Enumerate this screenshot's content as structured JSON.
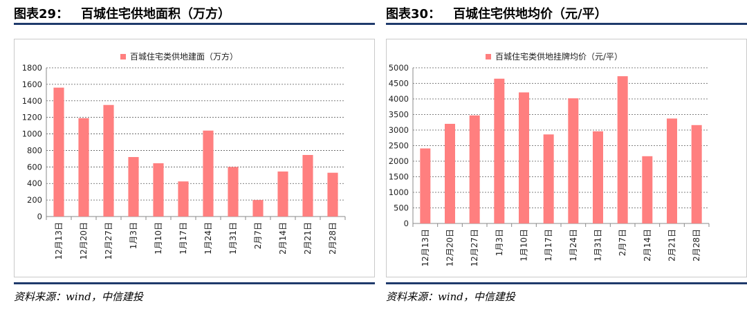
{
  "figures": [
    {
      "number": "图表29：",
      "title": "百城住宅供地面积（万方）",
      "source": "资料来源：wind，中信建投"
    },
    {
      "number": "图表30：",
      "title": "百城住宅供地均价（元/平）",
      "source": "资料来源：wind，中信建投"
    }
  ],
  "chart_data": [
    {
      "type": "bar",
      "categories": [
        "12月13日",
        "12月20日",
        "12月27日",
        "1月3日",
        "1月10日",
        "1月17日",
        "1月24日",
        "1月31日",
        "2月7日",
        "2月14日",
        "2月21日",
        "2月28日"
      ],
      "series": [
        {
          "name": "百城住宅类供地建面（万方）",
          "values": [
            1560,
            1190,
            1350,
            720,
            645,
            425,
            1040,
            600,
            200,
            545,
            745,
            530
          ]
        }
      ],
      "ylim": [
        0,
        1800
      ],
      "yticks": [
        0,
        200,
        400,
        600,
        800,
        1000,
        1200,
        1400,
        1600,
        1800
      ],
      "legend": "top-center",
      "grid": "horizontal-dashed",
      "color": "#ff7f7f"
    },
    {
      "type": "bar",
      "categories": [
        "12月13日",
        "12月20日",
        "12月27日",
        "1月3日",
        "1月10日",
        "1月17日",
        "1月24日",
        "1月31日",
        "2月7日",
        "2月14日",
        "2月21日",
        "2月28日"
      ],
      "series": [
        {
          "name": "百城住宅类供地挂牌均价（元/平）",
          "values": [
            2410,
            3200,
            3470,
            4650,
            4210,
            2860,
            4020,
            2960,
            4730,
            2160,
            3370,
            3160
          ]
        }
      ],
      "ylim": [
        0,
        5000
      ],
      "yticks": [
        0,
        500,
        1000,
        1500,
        2000,
        2500,
        3000,
        3500,
        4000,
        4500,
        5000
      ],
      "legend": "top-center",
      "grid": "horizontal-dashed",
      "color": "#ff7f7f"
    }
  ]
}
